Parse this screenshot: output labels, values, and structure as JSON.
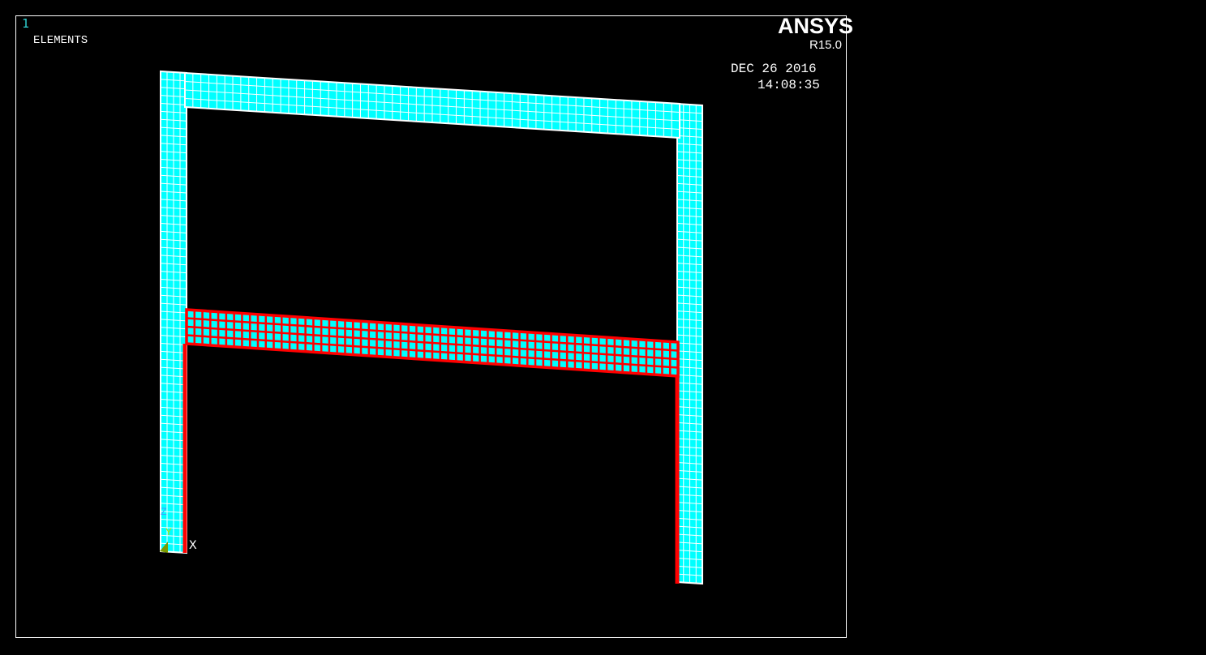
{
  "window_number": "1",
  "plot_label": "ELEMENTS",
  "brand": "ANSYS",
  "release": "R15.0",
  "date": "DEC 26 2016",
  "time": "14:08:35",
  "triad": {
    "x": "X",
    "y": "Y",
    "z": "Z"
  },
  "colors": {
    "element_fill": "#00ffff",
    "mesh_lines": "#ffffff",
    "selected": "#ff0000",
    "background": "#000000"
  }
}
